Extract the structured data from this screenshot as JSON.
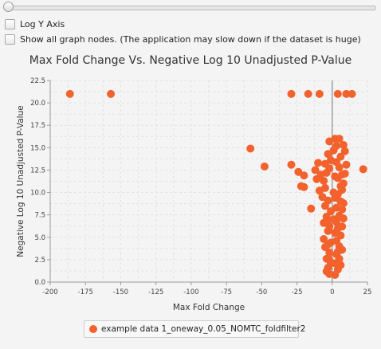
{
  "controls": {
    "log_y_axis_label": "Log Y Axis",
    "log_y_axis_checked": false,
    "show_all_nodes_label": "Show all graph nodes.  (The application may slow down if the dataset is huge)",
    "show_all_nodes_checked": false,
    "slider_value": 0
  },
  "colors": {
    "series": "#f3622d",
    "zero_line": "#8a8a8a",
    "grid": "#e2e2e2",
    "plot_bg": "#f4f4f4"
  },
  "chart_data": {
    "type": "scatter",
    "title": "Max Fold Change Vs. Negative Log 10 Unadjusted P-Value",
    "xlabel": "Max Fold Change",
    "ylabel": "Negative Log 10 Unadjusted P-Value",
    "xlim": [
      -200,
      25
    ],
    "ylim": [
      0,
      22.5
    ],
    "x_ticks": [
      "-200",
      "-175",
      "-150",
      "-125",
      "-100",
      "-75",
      "-50",
      "-25",
      "0",
      "25"
    ],
    "y_ticks": [
      "0.0",
      "2.5",
      "5.0",
      "7.5",
      "10.0",
      "12.5",
      "15.0",
      "17.5",
      "20.0",
      "22.5"
    ],
    "grid": true,
    "legend": "bottom",
    "series": [
      {
        "name": "example data 1_oneway_0.05_NOMTC_foldfilter2",
        "points": [
          [
            -186,
            21.0
          ],
          [
            -157,
            21.0
          ],
          [
            -29,
            21.0
          ],
          [
            -17,
            21.0
          ],
          [
            -9,
            21.0
          ],
          [
            4,
            21.0
          ],
          [
            10,
            21.0
          ],
          [
            14,
            21.0
          ],
          [
            -58,
            14.9
          ],
          [
            -48,
            12.9
          ],
          [
            -29,
            13.1
          ],
          [
            -24,
            12.3
          ],
          [
            -22,
            10.7
          ],
          [
            -20,
            10.6
          ],
          [
            -20,
            11.9
          ],
          [
            -15,
            8.2
          ],
          [
            22,
            12.6
          ],
          [
            -12,
            12.5
          ],
          [
            -11,
            11.5
          ],
          [
            -10,
            13.3
          ],
          [
            -9,
            10.2
          ],
          [
            -8,
            12.0
          ],
          [
            -7,
            9.5
          ],
          [
            -6,
            11.3
          ],
          [
            -5,
            10.5
          ],
          [
            -5,
            13.2
          ],
          [
            -4,
            12.2
          ],
          [
            -3,
            9.1
          ],
          [
            -3,
            14.3
          ],
          [
            -2,
            12.7
          ],
          [
            -2,
            15.7
          ],
          [
            -1,
            13.6
          ],
          [
            -6,
            4.8
          ],
          [
            -5,
            3.9
          ],
          [
            -4,
            2.6
          ],
          [
            -3,
            1.6
          ],
          [
            -3,
            5.7
          ],
          [
            -4,
            7.3
          ],
          [
            -6,
            6.6
          ],
          [
            -5,
            8.5
          ],
          [
            -2,
            0.9
          ],
          [
            -2,
            3.3
          ],
          [
            -2,
            6.2
          ],
          [
            -1,
            2.1
          ],
          [
            -1,
            4.4
          ],
          [
            -1,
            7.9
          ],
          [
            -4,
            1.2
          ],
          [
            -3,
            4.2
          ],
          [
            -3,
            6.9
          ],
          [
            -2,
            2.5
          ],
          [
            2,
            0.8
          ],
          [
            2,
            2.1
          ],
          [
            3,
            3.1
          ],
          [
            3,
            4.6
          ],
          [
            4,
            1.4
          ],
          [
            4,
            6.0
          ],
          [
            5,
            2.6
          ],
          [
            5,
            7.4
          ],
          [
            6,
            5.2
          ],
          [
            6,
            9.0
          ],
          [
            7,
            3.6
          ],
          [
            7,
            10.3
          ],
          [
            3,
            8.3
          ],
          [
            4,
            11.6
          ],
          [
            5,
            12.8
          ],
          [
            6,
            14.0
          ],
          [
            3,
            15.2
          ],
          [
            5,
            16.0
          ],
          [
            2,
            16.0
          ],
          [
            8,
            15.3
          ],
          [
            9,
            14.6
          ],
          [
            10,
            13.1
          ],
          [
            7,
            12.0
          ],
          [
            8,
            11.0
          ],
          [
            6,
            10.7
          ],
          [
            4,
            9.8
          ],
          [
            2,
            9.4
          ],
          [
            8,
            7.1
          ],
          [
            7,
            6.2
          ],
          [
            8,
            8.8
          ],
          [
            9,
            12.1
          ],
          [
            3,
            13.4
          ],
          [
            2,
            11.8
          ],
          [
            1,
            14.7
          ],
          [
            5,
            4.0
          ],
          [
            6,
            1.9
          ],
          [
            1,
            10.0
          ],
          [
            2,
            5.5
          ],
          [
            4,
            3.4
          ],
          [
            1,
            7.0
          ],
          [
            7,
            8.1
          ],
          [
            3,
            6.7
          ]
        ]
      }
    ]
  }
}
